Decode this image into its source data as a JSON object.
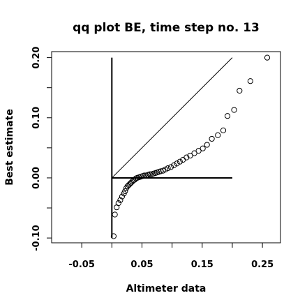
{
  "chart_data": {
    "type": "scatter",
    "title": "qq plot BE, time step no. 13",
    "xlabel": "Altimeter data",
    "ylabel": "Best estimate",
    "xlim": [
      -0.1,
      0.28
    ],
    "ylim": [
      -0.108,
      0.21
    ],
    "x_ticks": [
      {
        "value": -0.05,
        "label": "-0.05"
      },
      {
        "value": 0.05,
        "label": "0.05"
      },
      {
        "value": 0.15,
        "label": "0.15"
      },
      {
        "value": 0.25,
        "label": "0.25"
      }
    ],
    "x_tick_marks": [
      -0.05,
      0.0,
      0.05,
      0.1,
      0.15,
      0.2,
      0.25
    ],
    "y_ticks": [
      {
        "value": -0.1,
        "label": "-0.10"
      },
      {
        "value": 0.0,
        "label": "0.00"
      },
      {
        "value": 0.1,
        "label": "0.10"
      },
      {
        "value": 0.2,
        "label": "0.20"
      }
    ],
    "y_tick_marks": [
      -0.1,
      -0.05,
      0.0,
      0.05,
      0.1,
      0.15,
      0.2
    ],
    "grid": false,
    "reference_lines": [
      {
        "x": [
          0.0,
          0.0
        ],
        "y": [
          -0.1,
          0.2
        ]
      },
      {
        "x": [
          0.0,
          0.2
        ],
        "y": [
          0.0,
          0.0
        ]
      },
      {
        "x": [
          0.0,
          0.2
        ],
        "y": [
          0.0,
          0.2
        ]
      }
    ],
    "points": [
      [
        0.003,
        -0.097
      ],
      [
        0.005,
        -0.061
      ],
      [
        0.008,
        -0.049
      ],
      [
        0.011,
        -0.042
      ],
      [
        0.014,
        -0.037
      ],
      [
        0.017,
        -0.031
      ],
      [
        0.02,
        -0.026
      ],
      [
        0.022,
        -0.022
      ],
      [
        0.024,
        -0.017
      ],
      [
        0.026,
        -0.014
      ],
      [
        0.028,
        -0.012
      ],
      [
        0.03,
        -0.01
      ],
      [
        0.032,
        -0.008
      ],
      [
        0.034,
        -0.006
      ],
      [
        0.036,
        -0.004
      ],
      [
        0.038,
        -0.003
      ],
      [
        0.04,
        -0.001
      ],
      [
        0.042,
        0.0
      ],
      [
        0.045,
        0.001
      ],
      [
        0.048,
        0.002
      ],
      [
        0.051,
        0.003
      ],
      [
        0.054,
        0.004
      ],
      [
        0.057,
        0.004
      ],
      [
        0.06,
        0.005
      ],
      [
        0.063,
        0.006
      ],
      [
        0.066,
        0.006
      ],
      [
        0.069,
        0.007
      ],
      [
        0.072,
        0.008
      ],
      [
        0.075,
        0.009
      ],
      [
        0.078,
        0.01
      ],
      [
        0.081,
        0.011
      ],
      [
        0.085,
        0.012
      ],
      [
        0.089,
        0.014
      ],
      [
        0.093,
        0.016
      ],
      [
        0.098,
        0.018
      ],
      [
        0.103,
        0.021
      ],
      [
        0.108,
        0.024
      ],
      [
        0.113,
        0.027
      ],
      [
        0.118,
        0.03
      ],
      [
        0.124,
        0.034
      ],
      [
        0.13,
        0.037
      ],
      [
        0.137,
        0.041
      ],
      [
        0.144,
        0.045
      ],
      [
        0.151,
        0.049
      ],
      [
        0.158,
        0.055
      ],
      [
        0.166,
        0.065
      ],
      [
        0.176,
        0.071
      ],
      [
        0.185,
        0.079
      ],
      [
        0.192,
        0.103
      ],
      [
        0.203,
        0.113
      ],
      [
        0.212,
        0.145
      ],
      [
        0.23,
        0.161
      ],
      [
        0.258,
        0.2
      ]
    ]
  }
}
